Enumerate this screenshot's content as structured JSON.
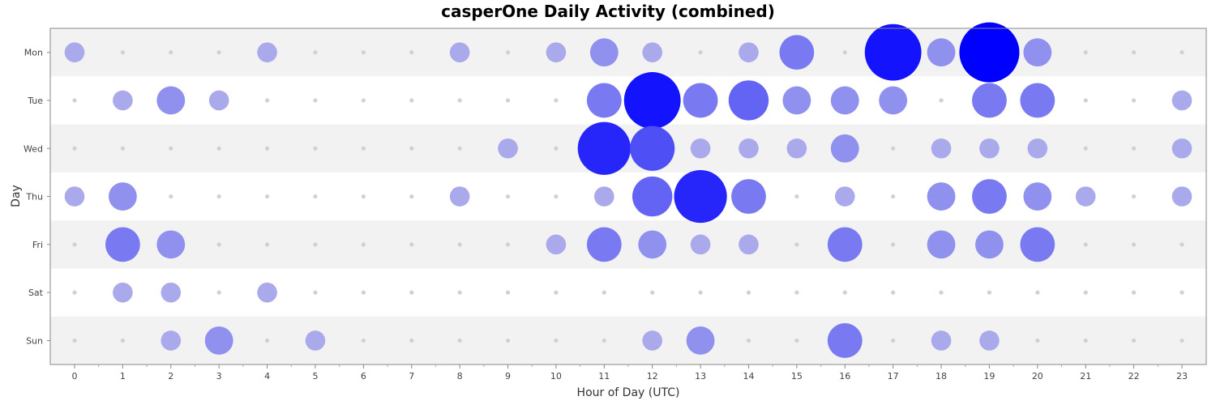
{
  "chart_data": {
    "type": "scatter",
    "title": "casperOne Daily Activity (combined)",
    "xlabel": "Hour of Day (UTC)",
    "ylabel": "Day",
    "x": [
      0,
      1,
      2,
      3,
      4,
      5,
      6,
      7,
      8,
      9,
      10,
      11,
      12,
      13,
      14,
      15,
      16,
      17,
      18,
      19,
      20,
      21,
      22,
      23
    ],
    "xlim": [
      -0.5,
      23.5
    ],
    "days": [
      "Mon",
      "Tue",
      "Wed",
      "Thu",
      "Fri",
      "Sat",
      "Sun"
    ],
    "band_colors": [
      "#f2f2f2",
      "#ffffff"
    ],
    "color_low": "#c8c8e8",
    "color_high": "#0000ff",
    "zero_dot_color": "#d0d0d8",
    "legend": "none",
    "activity": {
      "Mon": [
        1,
        0,
        0,
        0,
        1,
        0,
        0,
        0,
        1,
        0,
        1,
        2,
        1,
        0,
        1,
        3,
        0,
        8,
        2,
        9,
        2,
        0,
        0,
        0
      ],
      "Tue": [
        0,
        1,
        2,
        1,
        0,
        0,
        0,
        0,
        0,
        0,
        0,
        3,
        8,
        3,
        4,
        2,
        2,
        2,
        0,
        3,
        3,
        0,
        0,
        1
      ],
      "Wed": [
        0,
        0,
        0,
        0,
        0,
        0,
        0,
        0,
        0,
        1,
        0,
        7,
        5,
        1,
        1,
        1,
        2,
        0,
        1,
        1,
        1,
        0,
        0,
        1
      ],
      "Thu": [
        1,
        2,
        0,
        0,
        0,
        0,
        0,
        0,
        1,
        0,
        0,
        1,
        4,
        7,
        3,
        0,
        1,
        0,
        2,
        3,
        2,
        1,
        0,
        1
      ],
      "Fri": [
        0,
        3,
        2,
        0,
        0,
        0,
        0,
        0,
        0,
        0,
        1,
        3,
        2,
        1,
        1,
        0,
        3,
        0,
        2,
        2,
        3,
        0,
        0,
        0
      ],
      "Sat": [
        0,
        1,
        1,
        0,
        1,
        0,
        0,
        0,
        0,
        0,
        0,
        0,
        0,
        0,
        0,
        0,
        0,
        0,
        0,
        0,
        0,
        0,
        0,
        0
      ],
      "Sun": [
        0,
        0,
        1,
        2,
        0,
        1,
        0,
        0,
        0,
        0,
        0,
        0,
        1,
        2,
        0,
        0,
        3,
        0,
        1,
        1,
        0,
        0,
        0,
        0
      ]
    }
  }
}
